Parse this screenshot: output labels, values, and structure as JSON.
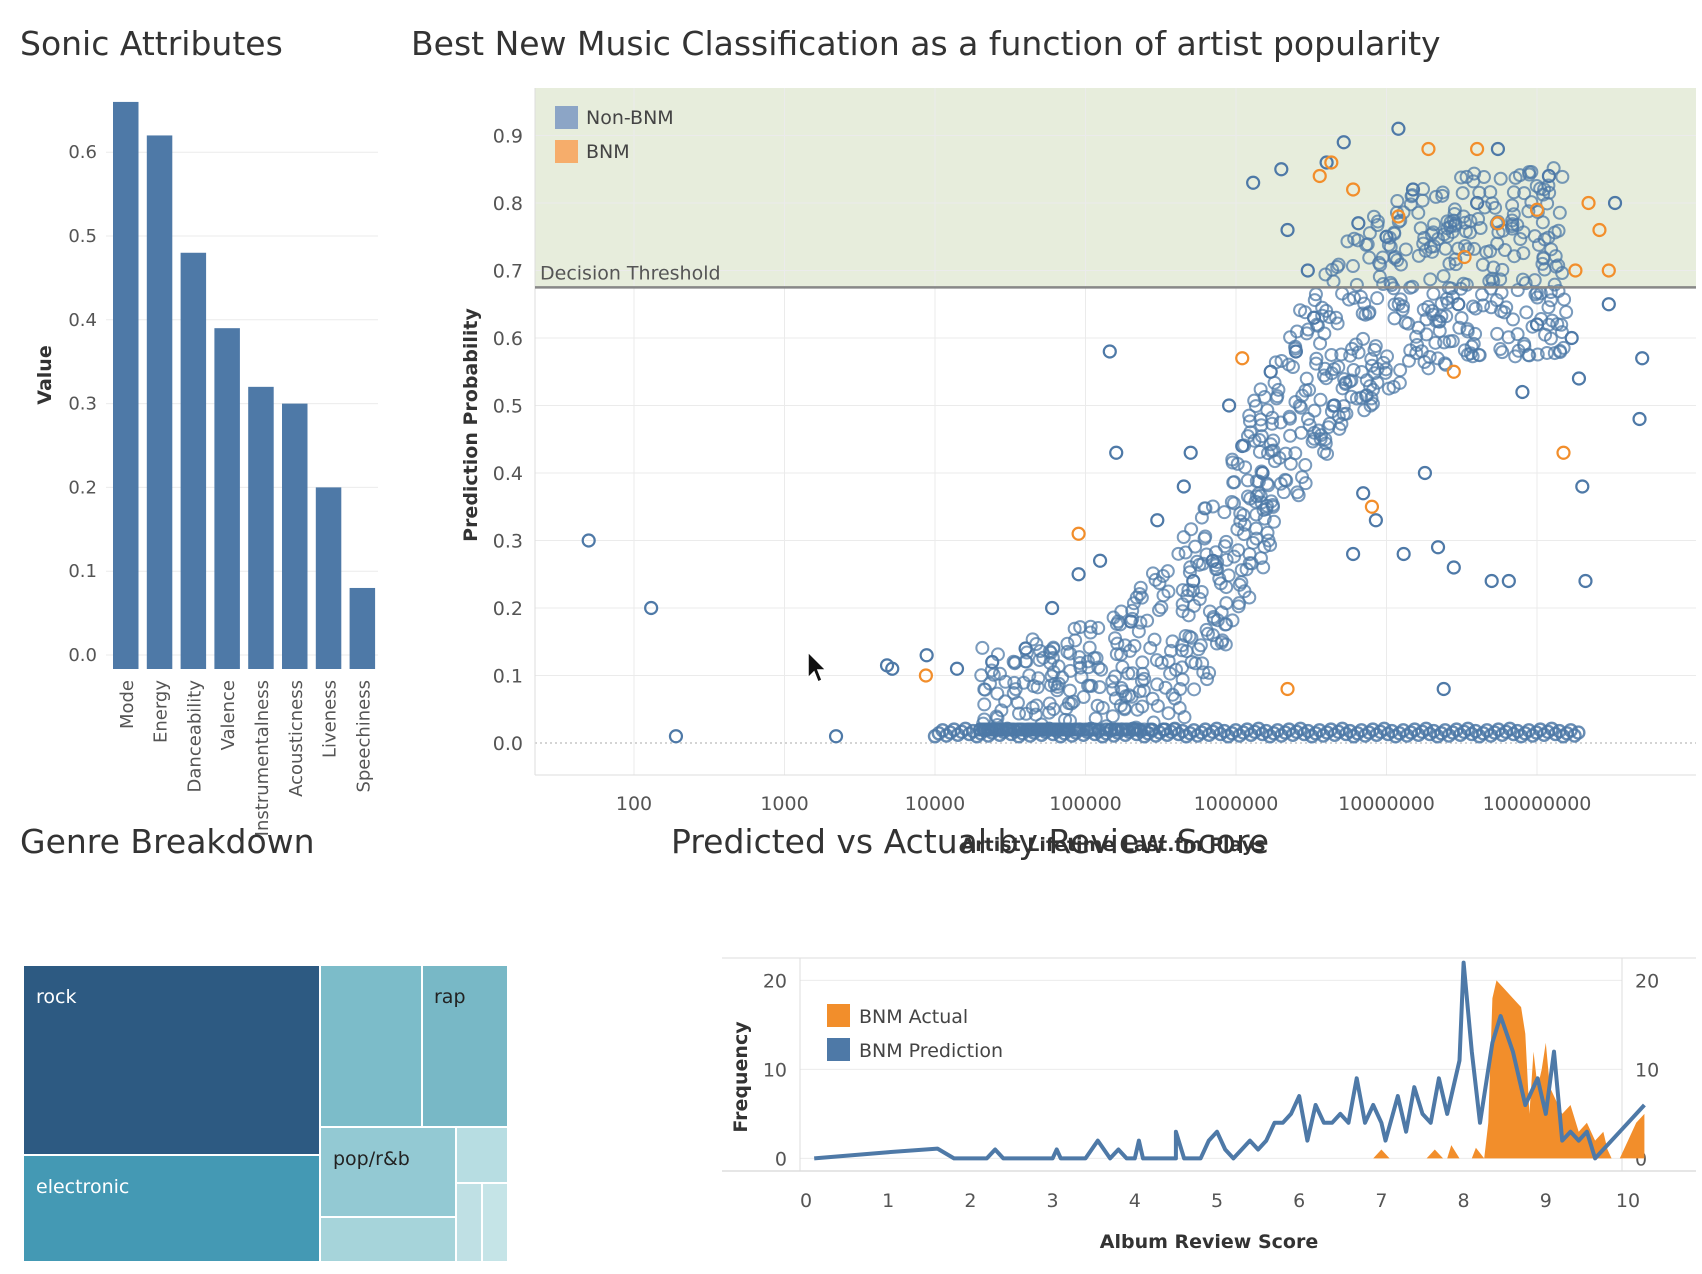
{
  "panels": {
    "sonic_title": "Sonic Attributes",
    "bnm_title": "Best New Music Classification as a function of artist popularity",
    "genre_title": "Genre Breakdown",
    "review_title": "Predicted vs Actual by Review Score"
  },
  "colors": {
    "blue": "#4e79a7",
    "blue_dark": "#2d5a82",
    "orange": "#f28e2b",
    "threshold_band": "#e7eddc",
    "teal_mid": "#4499b4",
    "teal_light": "#7cbcc9"
  },
  "chart_data": [
    {
      "id": "sonic",
      "type": "bar",
      "title": "Sonic Attributes",
      "ylabel": "Value",
      "xlabel": "",
      "ylim": [
        0,
        0.66
      ],
      "yticks": [
        "0.0",
        "0.1",
        "0.2",
        "0.3",
        "0.4",
        "0.5",
        "0.6"
      ],
      "categories": [
        "Mode",
        "Energy",
        "Danceability",
        "Valence",
        "Instrumentalness",
        "Acousticness",
        "Liveness",
        "Speechiness"
      ],
      "values": [
        0.66,
        0.62,
        0.48,
        0.39,
        0.32,
        0.3,
        0.2,
        0.08
      ],
      "grid": true
    },
    {
      "id": "bnm",
      "type": "scatter",
      "title": "Best New Music Classification as a function of artist popularity",
      "xlabel": "Artist Lifetime Last.fm Plays",
      "ylabel": "Prediction Probability",
      "x_scale": "log",
      "xticks": [
        "100",
        "1000",
        "10000",
        "100000",
        "1000000",
        "10000000",
        "100000000"
      ],
      "yticks": [
        "0.0",
        "0.1",
        "0.2",
        "0.3",
        "0.4",
        "0.5",
        "0.6",
        "0.7",
        "0.8",
        "0.9"
      ],
      "xlim": [
        10,
        1000000000
      ],
      "ylim": [
        -0.04,
        0.97
      ],
      "threshold": {
        "label": "Decision Threshold",
        "value": 0.675
      },
      "legend": {
        "position": "top-left",
        "entries": [
          "Non-BNM",
          "BNM"
        ]
      },
      "series": [
        {
          "name": "Non-BNM",
          "points": [
            [
              50,
              0.3
            ],
            [
              130,
              0.2
            ],
            [
              190,
              0.01
            ],
            [
              2200,
              0.01
            ],
            [
              4800,
              0.115
            ],
            [
              5200,
              0.11
            ],
            [
              8800,
              0.13
            ],
            [
              14000,
              0.11
            ],
            [
              24000,
              0.12
            ],
            [
              40000,
              0.14
            ],
            [
              60000,
              0.2
            ],
            [
              90000,
              0.25
            ],
            [
              125000,
              0.27
            ],
            [
              145000,
              0.58
            ],
            [
              160000,
              0.43
            ],
            [
              200000,
              0.18
            ],
            [
              300000,
              0.33
            ],
            [
              450000,
              0.38
            ],
            [
              500000,
              0.43
            ],
            [
              520000,
              0.24
            ],
            [
              700000,
              0.27
            ],
            [
              900000,
              0.5
            ],
            [
              1100000,
              0.44
            ],
            [
              1300000,
              0.83
            ],
            [
              1500000,
              0.4
            ],
            [
              1700000,
              0.55
            ],
            [
              2000000,
              0.85
            ],
            [
              2200000,
              0.76
            ],
            [
              2500000,
              0.58
            ],
            [
              3000000,
              0.7
            ],
            [
              3300000,
              0.63
            ],
            [
              4000000,
              0.86
            ],
            [
              4500000,
              0.5
            ],
            [
              5200000,
              0.89
            ],
            [
              6000000,
              0.28
            ],
            [
              6500000,
              0.77
            ],
            [
              7000000,
              0.37
            ],
            [
              8500000,
              0.33
            ],
            [
              10000000,
              0.75
            ],
            [
              12000000,
              0.91
            ],
            [
              13000000,
              0.28
            ],
            [
              15000000,
              0.82
            ],
            [
              18000000,
              0.4
            ],
            [
              22000000,
              0.29
            ],
            [
              24000000,
              0.08
            ],
            [
              28000000,
              0.26
            ],
            [
              30000000,
              0.65
            ],
            [
              40000000,
              0.8
            ],
            [
              50000000,
              0.24
            ],
            [
              55000000,
              0.88
            ],
            [
              65000000,
              0.24
            ],
            [
              80000000,
              0.52
            ],
            [
              100000000,
              0.62
            ],
            [
              120000000,
              0.84
            ],
            [
              170000000,
              0.6
            ],
            [
              190000000,
              0.54
            ],
            [
              200000000,
              0.38
            ],
            [
              210000000,
              0.24
            ],
            [
              300000000,
              0.65
            ],
            [
              330000000,
              0.8
            ],
            [
              480000000,
              0.48
            ],
            [
              500000000,
              0.57
            ]
          ]
        },
        {
          "name": "BNM",
          "points": [
            [
              8700,
              0.1
            ],
            [
              90000,
              0.31
            ],
            [
              1100000,
              0.57
            ],
            [
              2200000,
              0.08
            ],
            [
              3600000,
              0.84
            ],
            [
              4300000,
              0.86
            ],
            [
              6000000,
              0.82
            ],
            [
              8000000,
              0.35
            ],
            [
              12000000,
              0.78
            ],
            [
              19000000,
              0.88
            ],
            [
              28000000,
              0.55
            ],
            [
              33000000,
              0.72
            ],
            [
              40000000,
              0.88
            ],
            [
              55000000,
              0.77
            ],
            [
              100000000,
              0.79
            ],
            [
              150000000,
              0.43
            ],
            [
              180000000,
              0.7
            ],
            [
              220000000,
              0.8
            ],
            [
              260000000,
              0.76
            ],
            [
              300000000,
              0.7
            ]
          ]
        }
      ],
      "grid": true
    },
    {
      "id": "genre",
      "type": "treemap",
      "title": "Genre Breakdown",
      "labels": [
        "rock",
        "rap",
        "electronic",
        "pop/r&b"
      ]
    },
    {
      "id": "review",
      "type": "area",
      "title": "Predicted vs Actual by Review Score",
      "xlabel": "Album Review Score",
      "ylabel": "Frequency",
      "xticks": [
        "0",
        "1",
        "2",
        "3",
        "4",
        "5",
        "6",
        "7",
        "8",
        "9",
        "10"
      ],
      "yticks": [
        "0",
        "10",
        "20"
      ],
      "yticks_right": [
        "0",
        "10",
        "20"
      ],
      "xlim": [
        -0.1,
        10.2
      ],
      "ylim": [
        -2,
        24
      ],
      "legend": {
        "position": "top-left",
        "entries": [
          "BNM Actual",
          "BNM Prediction"
        ]
      },
      "series": [
        {
          "name": "BNM Actual",
          "type": "area",
          "points": [
            [
              6.9,
              0
            ],
            [
              7.0,
              1
            ],
            [
              7.1,
              0
            ],
            [
              7.55,
              0
            ],
            [
              7.65,
              1
            ],
            [
              7.75,
              0
            ],
            [
              7.8,
              0
            ],
            [
              7.85,
              1.5
            ],
            [
              7.95,
              0
            ],
            [
              8.1,
              0
            ],
            [
              8.15,
              1.2
            ],
            [
              8.25,
              0
            ],
            [
              8.3,
              4
            ],
            [
              8.35,
              18
            ],
            [
              8.4,
              20
            ],
            [
              8.5,
              19
            ],
            [
              8.6,
              18
            ],
            [
              8.7,
              17
            ],
            [
              8.75,
              14
            ],
            [
              8.8,
              5
            ],
            [
              8.85,
              12
            ],
            [
              8.9,
              8
            ],
            [
              8.95,
              10
            ],
            [
              9.0,
              13
            ],
            [
              9.05,
              8
            ],
            [
              9.1,
              7
            ],
            [
              9.2,
              5
            ],
            [
              9.3,
              6
            ],
            [
              9.4,
              3
            ],
            [
              9.5,
              4
            ],
            [
              9.6,
              2
            ],
            [
              9.7,
              3
            ],
            [
              9.75,
              1
            ],
            [
              9.8,
              0
            ],
            [
              9.9,
              0
            ],
            [
              10.0,
              2
            ],
            [
              10.1,
              4
            ],
            [
              10.2,
              5
            ],
            [
              10.2,
              0
            ]
          ]
        },
        {
          "name": "BNM Prediction",
          "type": "line",
          "points": [
            [
              0.1,
              0
            ],
            [
              1.0,
              0.7
            ],
            [
              1.6,
              1.1
            ],
            [
              1.8,
              0
            ],
            [
              2.2,
              0
            ],
            [
              2.3,
              1
            ],
            [
              2.4,
              0
            ],
            [
              3.0,
              0
            ],
            [
              3.05,
              1
            ],
            [
              3.1,
              0
            ],
            [
              3.4,
              0
            ],
            [
              3.55,
              2
            ],
            [
              3.7,
              0
            ],
            [
              3.8,
              1
            ],
            [
              3.9,
              0
            ],
            [
              4.0,
              0
            ],
            [
              4.05,
              2
            ],
            [
              4.1,
              0
            ],
            [
              4.5,
              0
            ],
            [
              4.5,
              3
            ],
            [
              4.6,
              0
            ],
            [
              4.8,
              0
            ],
            [
              4.9,
              2
            ],
            [
              5.0,
              3
            ],
            [
              5.1,
              1
            ],
            [
              5.2,
              0
            ],
            [
              5.3,
              1
            ],
            [
              5.4,
              2
            ],
            [
              5.5,
              1
            ],
            [
              5.6,
              2
            ],
            [
              5.7,
              4
            ],
            [
              5.8,
              4
            ],
            [
              5.9,
              5
            ],
            [
              6.0,
              7
            ],
            [
              6.1,
              2
            ],
            [
              6.2,
              6
            ],
            [
              6.3,
              4
            ],
            [
              6.4,
              4
            ],
            [
              6.5,
              5
            ],
            [
              6.6,
              4
            ],
            [
              6.7,
              9
            ],
            [
              6.8,
              4
            ],
            [
              6.9,
              6
            ],
            [
              7.0,
              4
            ],
            [
              7.05,
              2
            ],
            [
              7.2,
              7
            ],
            [
              7.3,
              3
            ],
            [
              7.4,
              8
            ],
            [
              7.5,
              5
            ],
            [
              7.6,
              4
            ],
            [
              7.7,
              9
            ],
            [
              7.8,
              5
            ],
            [
              7.95,
              11
            ],
            [
              8.0,
              22
            ],
            [
              8.1,
              12
            ],
            [
              8.2,
              4
            ],
            [
              8.35,
              13
            ],
            [
              8.45,
              16
            ],
            [
              8.6,
              12
            ],
            [
              8.75,
              6
            ],
            [
              8.9,
              9
            ],
            [
              9.0,
              5
            ],
            [
              9.1,
              12
            ],
            [
              9.2,
              2
            ],
            [
              9.3,
              3
            ],
            [
              9.4,
              2
            ],
            [
              9.5,
              3
            ],
            [
              9.6,
              0
            ],
            [
              9.7,
              1
            ],
            [
              9.9,
              3
            ],
            [
              10.0,
              4
            ],
            [
              10.2,
              6
            ]
          ]
        }
      ],
      "grid": true
    }
  ]
}
